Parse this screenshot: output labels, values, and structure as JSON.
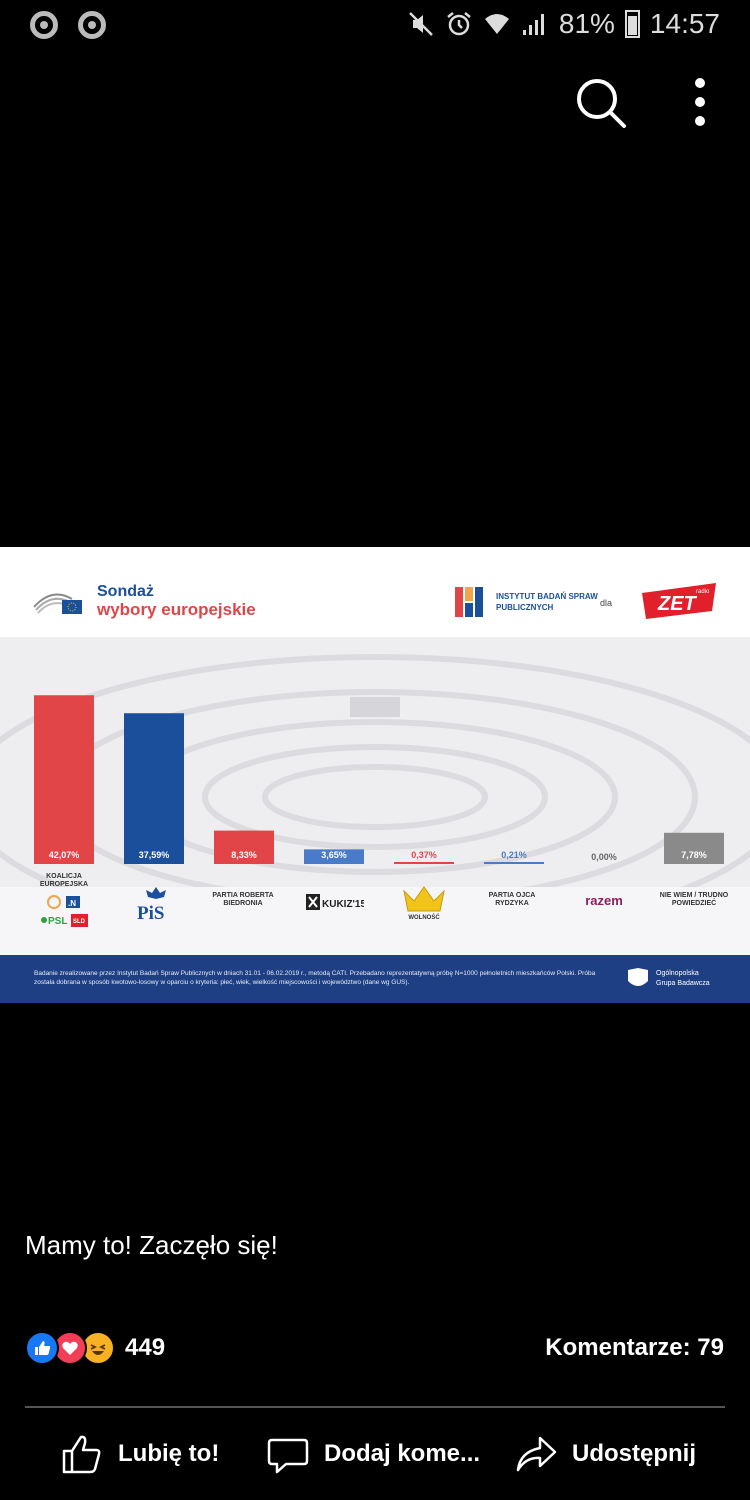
{
  "status_bar": {
    "battery": "81%",
    "time": "14:57",
    "battery_level": 0.81
  },
  "infographic": {
    "title_line1": "Sondaż",
    "title_line2": "wybory europejskie",
    "institute": "INSTYTUT BADAŃ SPRAW PUBLICZNYCH",
    "for_label": "dla",
    "radio_logo": "ZET",
    "radio_small": "radio",
    "footnote": "Badanie zrealizowane przez Instytut Badań Spraw Publicznych w dniach 31.01 - 06.02.2019 r., metodą CATI. Przebadano reprezentatywną próbę N=1000 pełnoletnich mieszkańców Polski. Próba została dobrana w sposób kwotowo-losowy w oparciu o kryteria: płeć, wiek, wielkość miejscowości i województwo (dane wg GUS).",
    "org_line1": "Ogólnopolska",
    "org_line2": "Grupa Badawcza"
  },
  "chart_data": {
    "type": "bar",
    "title": "Sondaż wybory europejskie",
    "categories": [
      "KOALICJA EUROPEJSKA",
      "PiS",
      "PARTIA ROBERTA BIEDRONIA",
      "KUKIZ'15",
      "WOLNOŚĆ",
      "PARTIA OJCA RYDZYKA",
      "razem",
      "NIE WIEM / TRUDNO POWIEDZIEĆ"
    ],
    "values": [
      42.07,
      37.59,
      8.33,
      3.65,
      0.37,
      0.21,
      0.0,
      7.78
    ],
    "value_labels": [
      "42,07%",
      "37,59%",
      "8,33%",
      "3,65%",
      "0,37%",
      "0,21%",
      "0,00%",
      "7,78%"
    ],
    "colors": [
      "#e14548",
      "#1b4f9b",
      "#e14548",
      "#4a7bc8",
      "#e14548",
      "#4a7bc8",
      "#999999",
      "#8a8a8a"
    ],
    "ylim": [
      0,
      45
    ],
    "grid": false
  },
  "party_labels": {
    "koalicja": "KOALICJA EUROPEJSKA",
    "koalicja_n": ".N",
    "koalicja_psl": "PSL",
    "koalicja_sld": "SLD",
    "pis": "PiS",
    "biedron": "PARTIA ROBERTA BIEDRONIA",
    "kukiz": "KUKIZ'15",
    "wolnosc": "WOLNOŚĆ",
    "rydzyk": "PARTIA OJCA RYDZYKA",
    "razem": "razem",
    "niewiem": "NIE WIEM / TRUDNO POWIEDZIEĆ"
  },
  "post": {
    "text": "Mamy to! Zaczęło się!",
    "reactions_count": "449",
    "comments": "Komentarze: 79"
  },
  "actions": {
    "like": "Lubię to!",
    "comment": "Dodaj kome...",
    "share": "Udostępnij"
  }
}
